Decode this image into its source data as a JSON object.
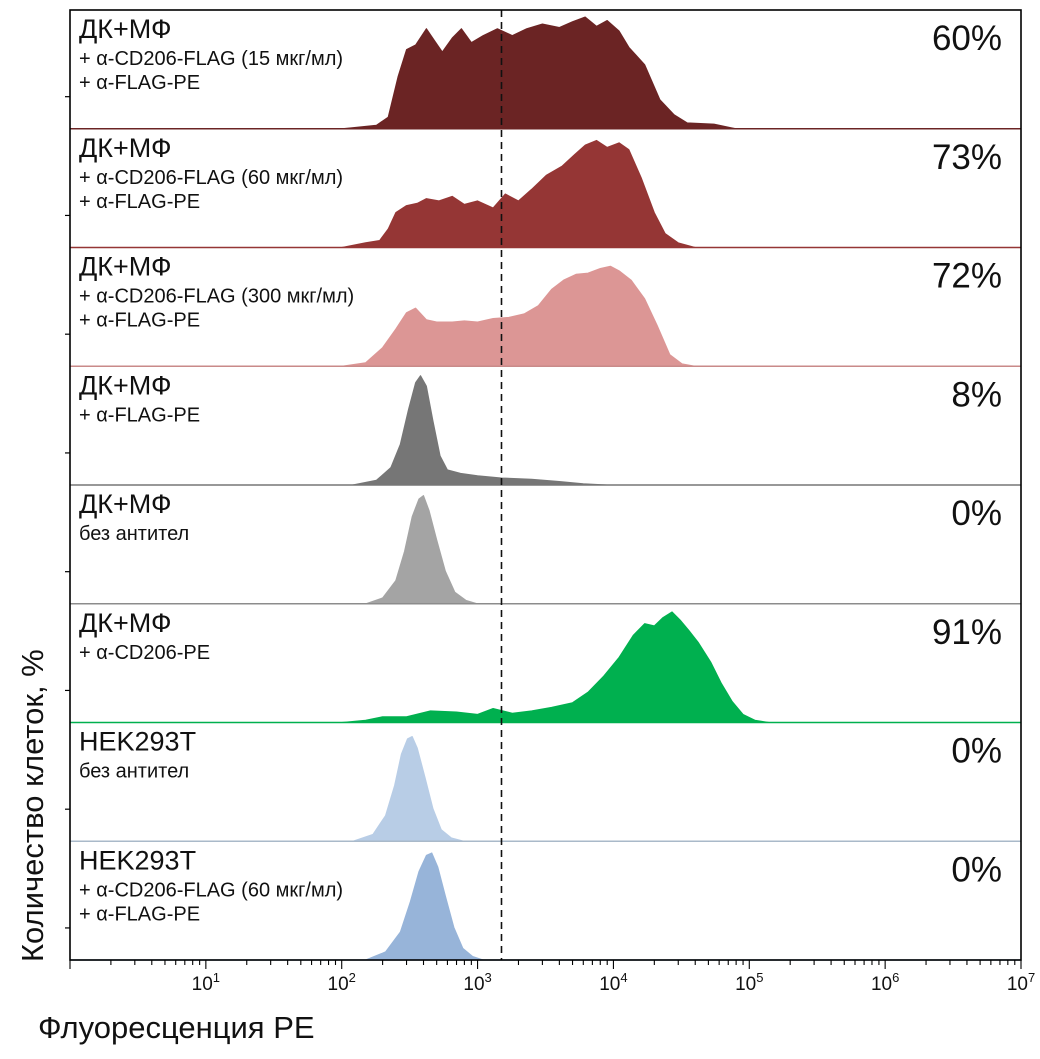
{
  "chart_data": {
    "type": "area",
    "subtype": "stacked-histogram-overlay",
    "xlabel": "Флуоресценция PE",
    "ylabel": "Количество клеток, %",
    "xscale": "log",
    "xlim": [
      1,
      10000000
    ],
    "x_ticks": [
      {
        "value": 10,
        "base": "10",
        "exp": "1"
      },
      {
        "value": 100,
        "base": "10",
        "exp": "2"
      },
      {
        "value": 1000,
        "base": "10",
        "exp": "3"
      },
      {
        "value": 10000,
        "base": "10",
        "exp": "4"
      },
      {
        "value": 100000,
        "base": "10",
        "exp": "5"
      },
      {
        "value": 1000000,
        "base": "10",
        "exp": "6"
      },
      {
        "value": 10000000,
        "base": "10",
        "exp": "7"
      }
    ],
    "gate_threshold": 1500,
    "grid": false,
    "panels": [
      {
        "title": "ДК+МФ",
        "sublines": [
          "+ α-CD206-FLAG (15 мкг/мл)",
          "+ α-FLAG-PE"
        ],
        "percent": "60%",
        "color": "#6b2424",
        "line_color": "#6b2424",
        "points": [
          [
            100,
            0
          ],
          [
            180,
            0.03
          ],
          [
            220,
            0.1
          ],
          [
            260,
            0.45
          ],
          [
            300,
            0.68
          ],
          [
            350,
            0.72
          ],
          [
            420,
            0.86
          ],
          [
            480,
            0.76
          ],
          [
            550,
            0.66
          ],
          [
            650,
            0.78
          ],
          [
            760,
            0.86
          ],
          [
            900,
            0.74
          ],
          [
            1100,
            0.8
          ],
          [
            1400,
            0.86
          ],
          [
            1800,
            0.8
          ],
          [
            2300,
            0.86
          ],
          [
            3000,
            0.9
          ],
          [
            4000,
            0.87
          ],
          [
            5000,
            0.92
          ],
          [
            6200,
            0.96
          ],
          [
            7500,
            0.88
          ],
          [
            9000,
            0.93
          ],
          [
            11000,
            0.84
          ],
          [
            13000,
            0.7
          ],
          [
            17000,
            0.55
          ],
          [
            22000,
            0.25
          ],
          [
            28000,
            0.12
          ],
          [
            35000,
            0.05
          ],
          [
            55000,
            0.04
          ],
          [
            80000,
            0.0
          ]
        ]
      },
      {
        "title": "ДК+МФ",
        "sublines": [
          "+ α-CD206-FLAG (60 мкг/мл)",
          "+ α-FLAG-PE"
        ],
        "percent": "73%",
        "color": "#953635",
        "line_color": "#953635",
        "points": [
          [
            100,
            0
          ],
          [
            150,
            0.04
          ],
          [
            190,
            0.06
          ],
          [
            220,
            0.16
          ],
          [
            250,
            0.3
          ],
          [
            300,
            0.36
          ],
          [
            360,
            0.38
          ],
          [
            420,
            0.42
          ],
          [
            520,
            0.4
          ],
          [
            650,
            0.44
          ],
          [
            800,
            0.37
          ],
          [
            1000,
            0.4
          ],
          [
            1300,
            0.34
          ],
          [
            1600,
            0.46
          ],
          [
            2000,
            0.4
          ],
          [
            2500,
            0.5
          ],
          [
            3200,
            0.62
          ],
          [
            4200,
            0.7
          ],
          [
            5200,
            0.8
          ],
          [
            6200,
            0.88
          ],
          [
            7500,
            0.92
          ],
          [
            9000,
            0.86
          ],
          [
            11000,
            0.9
          ],
          [
            13000,
            0.84
          ],
          [
            16000,
            0.6
          ],
          [
            20000,
            0.3
          ],
          [
            24000,
            0.12
          ],
          [
            30000,
            0.04
          ],
          [
            40000,
            0.0
          ]
        ]
      },
      {
        "title": "ДК+МФ",
        "sublines": [
          "+ α-CD206-FLAG (300 мкг/мл)",
          "+ α-FLAG-PE"
        ],
        "percent": "72%",
        "color": "#dc9695",
        "line_color": "#c98a89",
        "points": [
          [
            100,
            0
          ],
          [
            150,
            0.03
          ],
          [
            200,
            0.16
          ],
          [
            250,
            0.32
          ],
          [
            300,
            0.46
          ],
          [
            350,
            0.5
          ],
          [
            420,
            0.4
          ],
          [
            500,
            0.38
          ],
          [
            650,
            0.38
          ],
          [
            800,
            0.39
          ],
          [
            1000,
            0.38
          ],
          [
            1300,
            0.41
          ],
          [
            1700,
            0.42
          ],
          [
            2200,
            0.45
          ],
          [
            2800,
            0.52
          ],
          [
            3500,
            0.66
          ],
          [
            4300,
            0.74
          ],
          [
            5300,
            0.79
          ],
          [
            6500,
            0.8
          ],
          [
            8000,
            0.84
          ],
          [
            9500,
            0.86
          ],
          [
            11000,
            0.82
          ],
          [
            13500,
            0.74
          ],
          [
            17000,
            0.58
          ],
          [
            21000,
            0.35
          ],
          [
            26000,
            0.1
          ],
          [
            32000,
            0.02
          ],
          [
            40000,
            0.0
          ]
        ]
      },
      {
        "title": "ДК+МФ",
        "sublines": [
          "+ α-FLAG-PE"
        ],
        "percent": "8%",
        "color": "#767676",
        "line_color": "#767676",
        "points": [
          [
            120,
            0
          ],
          [
            180,
            0.04
          ],
          [
            230,
            0.15
          ],
          [
            270,
            0.35
          ],
          [
            310,
            0.65
          ],
          [
            350,
            0.88
          ],
          [
            380,
            0.94
          ],
          [
            420,
            0.85
          ],
          [
            470,
            0.55
          ],
          [
            530,
            0.25
          ],
          [
            600,
            0.13
          ],
          [
            750,
            0.1
          ],
          [
            1000,
            0.08
          ],
          [
            1500,
            0.06
          ],
          [
            2500,
            0.05
          ],
          [
            4000,
            0.03
          ],
          [
            6000,
            0.01
          ],
          [
            9000,
            0.0
          ]
        ]
      },
      {
        "title": "ДК+МФ",
        "sublines": [
          "без антител"
        ],
        "percent": "0%",
        "color": "#a4a4a4",
        "line_color": "#8c8c8c",
        "points": [
          [
            150,
            0
          ],
          [
            200,
            0.05
          ],
          [
            250,
            0.2
          ],
          [
            290,
            0.45
          ],
          [
            330,
            0.75
          ],
          [
            370,
            0.9
          ],
          [
            400,
            0.93
          ],
          [
            440,
            0.8
          ],
          [
            500,
            0.55
          ],
          [
            580,
            0.28
          ],
          [
            680,
            0.1
          ],
          [
            820,
            0.03
          ],
          [
            1000,
            0.0
          ]
        ]
      },
      {
        "title": "ДК+МФ",
        "sublines": [
          "+ α-CD206-PE"
        ],
        "percent": "91%",
        "color": "#00b04f",
        "line_color": "#00b04f",
        "points": [
          [
            100,
            0
          ],
          [
            150,
            0.02
          ],
          [
            200,
            0.05
          ],
          [
            300,
            0.05
          ],
          [
            450,
            0.1
          ],
          [
            700,
            0.09
          ],
          [
            1000,
            0.07
          ],
          [
            1300,
            0.12
          ],
          [
            1800,
            0.08
          ],
          [
            2500,
            0.1
          ],
          [
            3500,
            0.13
          ],
          [
            5000,
            0.17
          ],
          [
            6500,
            0.26
          ],
          [
            8500,
            0.4
          ],
          [
            11000,
            0.56
          ],
          [
            14000,
            0.75
          ],
          [
            17000,
            0.85
          ],
          [
            20000,
            0.83
          ],
          [
            23000,
            0.9
          ],
          [
            27000,
            0.95
          ],
          [
            31000,
            0.88
          ],
          [
            36000,
            0.79
          ],
          [
            42000,
            0.69
          ],
          [
            52000,
            0.52
          ],
          [
            62000,
            0.34
          ],
          [
            75000,
            0.18
          ],
          [
            90000,
            0.07
          ],
          [
            110000,
            0.02
          ],
          [
            140000,
            0.0
          ]
        ]
      },
      {
        "title": "HEK293T",
        "sublines": [
          "без антител"
        ],
        "percent": "0%",
        "color": "#b8cde6",
        "line_color": "#a9b9c9",
        "points": [
          [
            120,
            0
          ],
          [
            170,
            0.06
          ],
          [
            210,
            0.22
          ],
          [
            245,
            0.48
          ],
          [
            275,
            0.75
          ],
          [
            305,
            0.88
          ],
          [
            330,
            0.9
          ],
          [
            360,
            0.8
          ],
          [
            410,
            0.55
          ],
          [
            470,
            0.28
          ],
          [
            540,
            0.1
          ],
          [
            640,
            0.03
          ],
          [
            800,
            0.0
          ]
        ]
      },
      {
        "title": "HEK293T",
        "sublines": [
          "+ α-CD206-FLAG (60 мкг/мл)",
          "+ α-FLAG-PE"
        ],
        "percent": "0%",
        "color": "#97b4d9",
        "line_color": "#97b4d9",
        "points": [
          [
            150,
            0
          ],
          [
            210,
            0.07
          ],
          [
            270,
            0.24
          ],
          [
            320,
            0.5
          ],
          [
            370,
            0.76
          ],
          [
            420,
            0.9
          ],
          [
            460,
            0.92
          ],
          [
            510,
            0.8
          ],
          [
            580,
            0.55
          ],
          [
            670,
            0.28
          ],
          [
            780,
            0.1
          ],
          [
            920,
            0.03
          ],
          [
            1100,
            0.0
          ]
        ]
      }
    ]
  }
}
